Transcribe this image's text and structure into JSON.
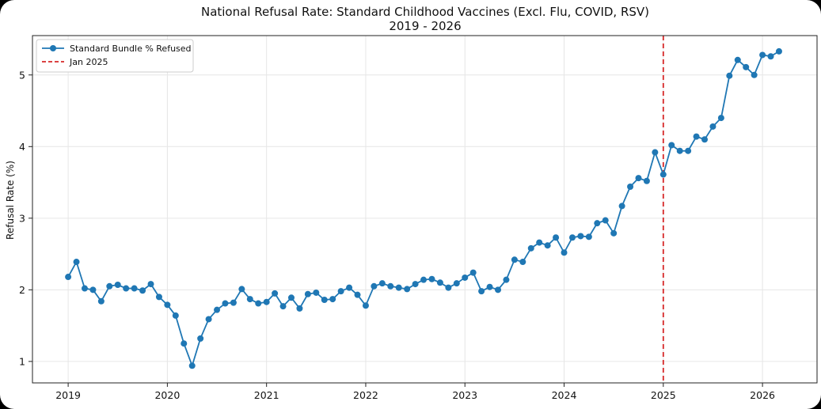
{
  "colors": {
    "series": "#1f77b4",
    "refline": "#d62728"
  },
  "chart_data": {
    "type": "line",
    "title": "National Refusal Rate: Standard Childhood Vaccines (Excl. Flu, COVID, RSV)",
    "subtitle": "2019 - 2026",
    "xlabel": "",
    "ylabel": "Refusal Rate (%)",
    "xlim": [
      2018.64,
      2026.55
    ],
    "ylim": [
      0.7,
      5.55
    ],
    "x_ticks": [
      {
        "value": 2019,
        "label": "2019"
      },
      {
        "value": 2020,
        "label": "2020"
      },
      {
        "value": 2021,
        "label": "2021"
      },
      {
        "value": 2022,
        "label": "2022"
      },
      {
        "value": 2023,
        "label": "2023"
      },
      {
        "value": 2024,
        "label": "2024"
      },
      {
        "value": 2025,
        "label": "2025"
      },
      {
        "value": 2026,
        "label": "2026"
      }
    ],
    "y_ticks": [
      {
        "value": 1,
        "label": "1"
      },
      {
        "value": 2,
        "label": "2"
      },
      {
        "value": 3,
        "label": "3"
      },
      {
        "value": 4,
        "label": "4"
      },
      {
        "value": 5,
        "label": "5"
      }
    ],
    "grid": true,
    "legend_position": "top-left",
    "series": [
      {
        "name": "Standard Bundle % Refused",
        "style": "line-with-markers",
        "start_year": 2019,
        "start_month": 1,
        "values": [
          2.18,
          2.39,
          2.02,
          2.0,
          1.84,
          2.05,
          2.07,
          2.02,
          2.02,
          1.99,
          2.08,
          1.9,
          1.79,
          1.64,
          1.25,
          0.94,
          1.32,
          1.59,
          1.72,
          1.81,
          1.82,
          2.01,
          1.87,
          1.81,
          1.83,
          1.95,
          1.77,
          1.89,
          1.74,
          1.94,
          1.96,
          1.86,
          1.87,
          1.98,
          2.03,
          1.93,
          1.78,
          2.05,
          2.09,
          2.05,
          2.03,
          2.01,
          2.08,
          2.14,
          2.15,
          2.1,
          2.03,
          2.09,
          2.17,
          2.24,
          1.98,
          2.04,
          2.0,
          2.14,
          2.42,
          2.39,
          2.58,
          2.66,
          2.62,
          2.73,
          2.52,
          2.73,
          2.75,
          2.74,
          2.93,
          2.97,
          2.79,
          3.17,
          3.44,
          3.56,
          3.52,
          3.92,
          3.61,
          4.02,
          3.94,
          3.94,
          4.14,
          4.1,
          4.28,
          4.4,
          4.99,
          5.21,
          5.11,
          5.0,
          5.28,
          5.26,
          5.33
        ]
      }
    ],
    "reference_lines": [
      {
        "name": "Jan 2025",
        "orientation": "vertical",
        "x": 2025,
        "style": "dashed"
      }
    ]
  }
}
